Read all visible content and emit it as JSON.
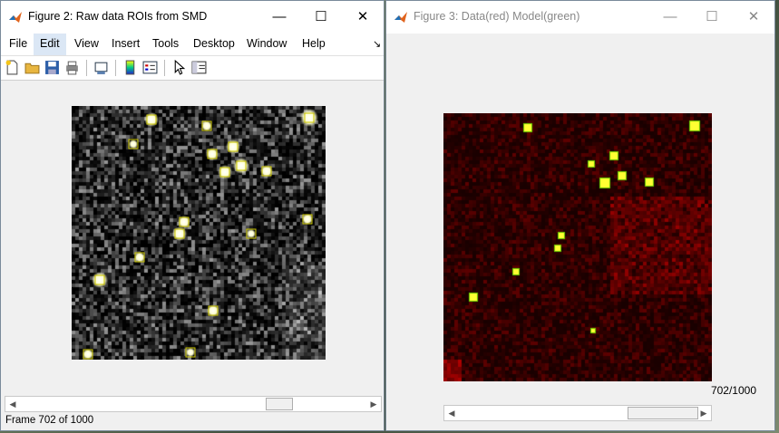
{
  "fig2": {
    "title": "Figure 2: Raw data ROIs from SMD",
    "menus": [
      "File",
      "Edit",
      "View",
      "Insert",
      "Tools",
      "Desktop",
      "Window",
      "Help"
    ],
    "active_menu": "Edit",
    "toolbar_icons": [
      "new-figure-icon",
      "open-file-icon",
      "save-icon",
      "print-icon",
      "print-preview-icon",
      "insert-colorbar-icon",
      "insert-legend-icon",
      "pointer-icon",
      "property-inspector-icon"
    ],
    "status_text": "Frame 702 of 1000"
  },
  "fig3": {
    "title": "Figure 3: Data(red) Model(green)",
    "frame_label": "702/1000"
  },
  "window_controls": {
    "minimize": "—",
    "maximize": "☐",
    "close": "✕"
  },
  "colors": {
    "roi_box": "#c9c400",
    "spot": "#ffff33",
    "red_bg": "#3a0000"
  }
}
